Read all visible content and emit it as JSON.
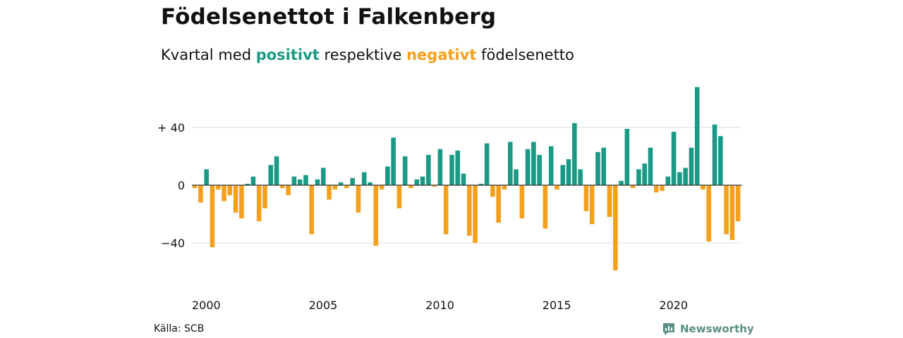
{
  "title": "Födelsenettot i Falkenberg",
  "subtitle": {
    "prefix": "Kvartal med",
    "positive_word": "positivt",
    "middle": "respektive",
    "negative_word": "negativt",
    "suffix": "födelsenetto"
  },
  "colors": {
    "positive": "#1a9a85",
    "negative": "#f5a01d",
    "grid": "#dddddd",
    "zero_line": "#333333",
    "text": "#111111",
    "logo": "#5a8f85"
  },
  "source": "Källa: SCB",
  "logo": {
    "text": "Newsworthy",
    "icon": "newsworthy-chart-icon"
  },
  "chart_data": {
    "type": "bar",
    "title": "Födelsenettot i Falkenberg",
    "subtitle": "Kvartal med positivt respektive negativt födelsenetto",
    "xlabel": "",
    "ylabel": "",
    "x_start": "2000-Q1",
    "x_ticks": [
      "2000",
      "2005",
      "2010",
      "2015",
      "2020"
    ],
    "y_ticks": [
      {
        "value": 40,
        "label": "+ 40"
      },
      {
        "value": 0,
        "label": "0"
      },
      {
        "value": -40,
        "label": "−40"
      }
    ],
    "ylim": [
      -62,
      72
    ],
    "grid": true,
    "legend": "none",
    "categories": [
      "2000 K1",
      "2000 K2",
      "2000 K3",
      "2000 K4",
      "2001 K1",
      "2001 K2",
      "2001 K3",
      "2001 K4",
      "2002 K1",
      "2002 K2",
      "2002 K3",
      "2002 K4",
      "2003 K1",
      "2003 K2",
      "2003 K3",
      "2003 K4",
      "2004 K1",
      "2004 K2",
      "2004 K3",
      "2004 K4",
      "2005 K1",
      "2005 K2",
      "2005 K3",
      "2005 K4",
      "2006 K1",
      "2006 K2",
      "2006 K3",
      "2006 K4",
      "2007 K1",
      "2007 K2",
      "2007 K3",
      "2007 K4",
      "2008 K1",
      "2008 K2",
      "2008 K3",
      "2008 K4",
      "2009 K1",
      "2009 K2",
      "2009 K3",
      "2009 K4",
      "2010 K1",
      "2010 K2",
      "2010 K3",
      "2010 K4",
      "2011 K1",
      "2011 K2",
      "2011 K3",
      "2011 K4",
      "2012 K1",
      "2012 K2",
      "2012 K3",
      "2012 K4",
      "2013 K1",
      "2013 K2",
      "2013 K3",
      "2013 K4",
      "2014 K1",
      "2014 K2",
      "2014 K3",
      "2014 K4",
      "2015 K1",
      "2015 K2",
      "2015 K3",
      "2015 K4",
      "2016 K1",
      "2016 K2",
      "2016 K3",
      "2016 K4",
      "2017 K1",
      "2017 K2",
      "2017 K3",
      "2017 K4",
      "2018 K1",
      "2018 K2",
      "2018 K3",
      "2018 K4",
      "2019 K1",
      "2019 K2",
      "2019 K3",
      "2019 K4",
      "2020 K1",
      "2020 K2",
      "2020 K3",
      "2020 K4",
      "2021 K1",
      "2021 K2",
      "2021 K3",
      "2021 K4",
      "2022 K1",
      "2022 K2",
      "2022 K3",
      "2022 K4",
      "2023 K1",
      "2023 K2"
    ],
    "values": [
      -2,
      -12,
      11,
      -43,
      -3,
      -11,
      -7,
      -19,
      -23,
      1,
      6,
      -25,
      -16,
      14,
      20,
      -2,
      -7,
      6,
      4,
      7,
      -34,
      4,
      12,
      -10,
      -3,
      2,
      -2,
      5,
      -19,
      9,
      2,
      -42,
      -3,
      13,
      33,
      -16,
      20,
      -2,
      4,
      6,
      21,
      -1,
      25,
      -34,
      21,
      24,
      8,
      -35,
      -40,
      1,
      29,
      -8,
      -26,
      -3,
      30,
      11,
      -23,
      25,
      30,
      21,
      -30,
      27,
      -3,
      14,
      18,
      43,
      11,
      -18,
      -27,
      23,
      26,
      -22,
      -59,
      3,
      39,
      -2,
      11,
      15,
      26,
      -5,
      -4,
      6,
      37,
      9,
      12,
      26,
      68,
      -3,
      -39,
      42,
      34,
      -34,
      -38,
      -25
    ]
  }
}
